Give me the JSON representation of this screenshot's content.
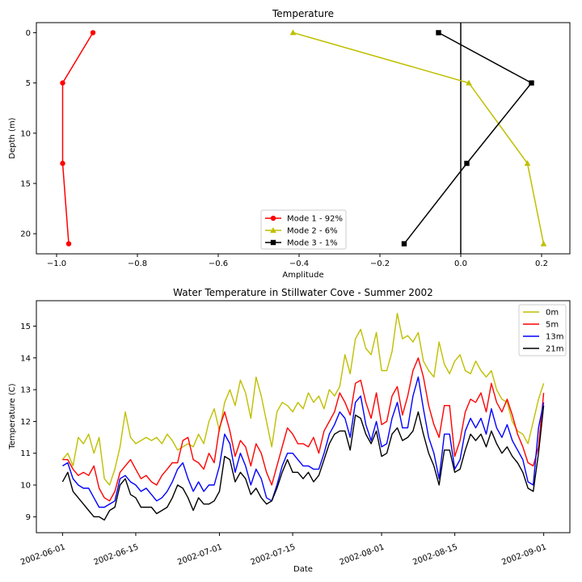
{
  "chart_data": [
    {
      "type": "line",
      "title": "Temperature",
      "xlabel": "Amplitude",
      "ylabel": "Depth (m)",
      "xlim": [
        -1.05,
        0.27
      ],
      "ylim": [
        22,
        -1
      ],
      "y_inverted": true,
      "xticks": [
        -1.0,
        -0.8,
        -0.6,
        -0.4,
        -0.2,
        0.0,
        0.2
      ],
      "xtick_labels": [
        "−1.0",
        "−0.8",
        "−0.6",
        "−0.4",
        "−0.2",
        "0.0",
        "0.2"
      ],
      "yticks": [
        0,
        5,
        10,
        15,
        20
      ],
      "ytick_labels": [
        "0",
        "5",
        "10",
        "15",
        "20"
      ],
      "vline_x": 0.0,
      "legend_position": "lower-center",
      "series": [
        {
          "name": "Mode 1 - 92%",
          "color": "#ff0000",
          "marker": "circle",
          "points": [
            [
              -0.91,
              0
            ],
            [
              -0.985,
              5
            ],
            [
              -0.985,
              13
            ],
            [
              -0.97,
              21
            ]
          ]
        },
        {
          "name": "Mode 2 - 6%",
          "color": "#bfbf00",
          "marker": "triangle",
          "points": [
            [
              -0.415,
              0
            ],
            [
              0.02,
              5
            ],
            [
              0.165,
              13
            ],
            [
              0.205,
              21
            ]
          ]
        },
        {
          "name": "Mode 3 - 1%",
          "color": "#000000",
          "marker": "square",
          "points": [
            [
              -0.055,
              0
            ],
            [
              0.175,
              5
            ],
            [
              0.015,
              13
            ],
            [
              -0.14,
              21
            ]
          ]
        }
      ]
    },
    {
      "type": "line",
      "title": "Water Temperature in Stillwater Cove - Summer 2002",
      "xlabel": "Date",
      "ylabel": "Temperature (C)",
      "x_start": "2002-06-01",
      "x_end": "2002-09-01",
      "xlim": [
        "2002-05-27",
        "2002-09-06"
      ],
      "ylim": [
        8.5,
        15.8
      ],
      "xticks": [
        "2002-06-01",
        "2002-06-15",
        "2002-07-01",
        "2002-07-15",
        "2002-08-01",
        "2002-08-15",
        "2002-09-01"
      ],
      "xtick_labels": [
        "2002-06-01",
        "2002-06-15",
        "2002-07-01",
        "2002-07-15",
        "2002-08-01",
        "2002-08-15",
        "2002-09-01"
      ],
      "yticks": [
        9,
        10,
        11,
        12,
        13,
        14,
        15
      ],
      "ytick_labels": [
        "9",
        "10",
        "11",
        "12",
        "13",
        "14",
        "15"
      ],
      "legend_position": "top-right",
      "series": [
        {
          "name": "0m",
          "color": "#bfbf00",
          "values": [
            10.8,
            11.0,
            10.6,
            11.5,
            11.3,
            11.6,
            11.0,
            11.5,
            10.2,
            10.0,
            10.5,
            11.2,
            12.3,
            11.5,
            11.3,
            11.4,
            11.5,
            11.4,
            11.5,
            11.3,
            11.6,
            11.4,
            11.1,
            11.2,
            11.3,
            11.2,
            11.6,
            11.3,
            12.0,
            12.4,
            11.7,
            12.6,
            13.0,
            12.5,
            13.3,
            12.9,
            12.1,
            13.4,
            12.8,
            12.0,
            11.2,
            12.3,
            12.6,
            12.5,
            12.3,
            12.6,
            12.4,
            12.9,
            12.6,
            12.8,
            12.4,
            13.0,
            12.8,
            13.1,
            14.1,
            13.5,
            14.6,
            14.9,
            14.3,
            14.1,
            14.8,
            13.6,
            13.6,
            14.2,
            15.4,
            14.6,
            14.7,
            14.5,
            14.8,
            13.9,
            13.6,
            13.4,
            14.5,
            13.8,
            13.5,
            13.9,
            14.1,
            13.6,
            13.5,
            13.9,
            13.6,
            13.4,
            13.6,
            13.0,
            12.7,
            12.6,
            12.0,
            11.7,
            11.6,
            11.3,
            12.0,
            12.7,
            13.2
          ]
        },
        {
          "name": "5m",
          "color": "#ff0000",
          "values": [
            10.8,
            10.8,
            10.5,
            10.3,
            10.4,
            10.3,
            10.6,
            9.9,
            9.6,
            9.5,
            9.8,
            10.4,
            10.6,
            10.8,
            10.5,
            10.2,
            10.3,
            10.1,
            10.0,
            10.3,
            10.5,
            10.7,
            10.7,
            11.4,
            11.5,
            10.8,
            10.7,
            10.5,
            11.0,
            10.7,
            11.8,
            12.3,
            11.7,
            10.9,
            11.4,
            11.2,
            10.6,
            11.3,
            11.0,
            10.4,
            10.0,
            10.6,
            11.2,
            11.8,
            11.6,
            11.3,
            11.3,
            11.2,
            11.5,
            11.0,
            11.7,
            12.0,
            12.3,
            12.9,
            12.6,
            12.2,
            13.2,
            13.3,
            12.6,
            12.1,
            12.9,
            11.9,
            12.0,
            12.8,
            13.1,
            12.2,
            12.8,
            13.6,
            14.0,
            13.4,
            12.5,
            11.9,
            11.5,
            12.5,
            12.5,
            10.9,
            11.4,
            12.3,
            12.7,
            12.6,
            12.9,
            12.3,
            13.2,
            12.6,
            12.3,
            12.7,
            12.2,
            11.6,
            11.2,
            10.7,
            10.6,
            11.2,
            12.9
          ]
        },
        {
          "name": "13m",
          "color": "#0000ff",
          "values": [
            10.6,
            10.7,
            10.2,
            10.0,
            9.9,
            9.9,
            9.6,
            9.3,
            9.3,
            9.4,
            9.5,
            10.2,
            10.3,
            10.1,
            10.0,
            9.8,
            9.9,
            9.7,
            9.5,
            9.6,
            9.8,
            10.1,
            10.5,
            10.7,
            10.2,
            9.8,
            10.1,
            9.8,
            10.0,
            10.0,
            10.6,
            11.6,
            11.3,
            10.4,
            11.0,
            10.6,
            10.0,
            10.5,
            10.2,
            9.6,
            9.5,
            10.0,
            10.6,
            11.0,
            11.0,
            10.8,
            10.6,
            10.6,
            10.5,
            10.5,
            11.0,
            11.6,
            11.9,
            12.3,
            12.1,
            11.5,
            12.6,
            12.8,
            11.9,
            11.4,
            12.0,
            11.2,
            11.3,
            12.1,
            12.6,
            11.8,
            11.8,
            12.8,
            13.4,
            12.4,
            11.5,
            11.0,
            10.2,
            11.6,
            11.6,
            10.5,
            10.8,
            11.7,
            12.1,
            11.8,
            12.1,
            11.6,
            12.4,
            11.8,
            11.5,
            11.9,
            11.4,
            11.1,
            10.8,
            10.1,
            10.0,
            11.8,
            12.6
          ]
        },
        {
          "name": "21m",
          "color": "#000000",
          "values": [
            10.1,
            10.4,
            9.8,
            9.6,
            9.4,
            9.2,
            9.0,
            9.0,
            8.9,
            9.2,
            9.3,
            10.0,
            10.2,
            9.7,
            9.6,
            9.3,
            9.3,
            9.3,
            9.1,
            9.2,
            9.3,
            9.6,
            10.0,
            9.9,
            9.6,
            9.2,
            9.6,
            9.4,
            9.4,
            9.5,
            9.8,
            10.9,
            10.8,
            10.1,
            10.4,
            10.2,
            9.7,
            9.9,
            9.6,
            9.4,
            9.5,
            9.9,
            10.4,
            10.8,
            10.4,
            10.4,
            10.2,
            10.4,
            10.1,
            10.3,
            10.8,
            11.3,
            11.6,
            11.7,
            11.7,
            11.1,
            12.2,
            12.1,
            11.6,
            11.3,
            11.7,
            10.9,
            11.0,
            11.6,
            11.8,
            11.4,
            11.5,
            11.7,
            12.3,
            11.6,
            11.0,
            10.6,
            10.0,
            11.1,
            11.1,
            10.4,
            10.5,
            11.1,
            11.6,
            11.4,
            11.6,
            11.2,
            11.7,
            11.3,
            11.0,
            11.2,
            10.9,
            10.7,
            10.4,
            9.9,
            9.8,
            11.0,
            12.5
          ]
        }
      ]
    }
  ]
}
